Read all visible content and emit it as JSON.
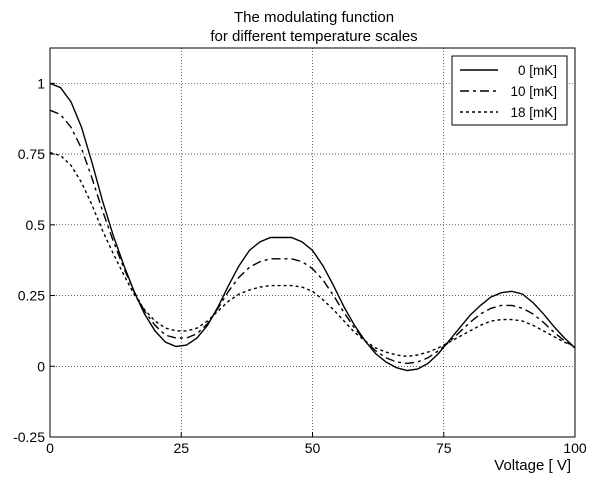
{
  "chart_data": {
    "type": "line",
    "title_line1": "The modulating function",
    "title_line2": "for different temperature scales",
    "xlabel": "Voltage [   V]",
    "ylabel": "",
    "xlim": [
      0,
      100
    ],
    "ylim": [
      -0.25,
      1.125
    ],
    "xticks": [
      0,
      25,
      50,
      75,
      100
    ],
    "xtick_labels": [
      "0",
      "25",
      "50",
      "75",
      "100"
    ],
    "yticks": [
      -0.25,
      0,
      0.25,
      0.5,
      0.75,
      1
    ],
    "ytick_labels": [
      "-0.25",
      "0",
      "0.25",
      "0.5",
      "0.75",
      "1"
    ],
    "grid": true,
    "legend_position": "top-right",
    "series": [
      {
        "name": "0 [mK]",
        "dash": "solid",
        "x": [
          0,
          2,
          4,
          6,
          8,
          10,
          12,
          14,
          16,
          18,
          20,
          22,
          24,
          26,
          28,
          30,
          32,
          34,
          36,
          38,
          40,
          42,
          44,
          46,
          48,
          50,
          52,
          54,
          56,
          58,
          60,
          62,
          64,
          66,
          68,
          70,
          72,
          74,
          76,
          78,
          80,
          82,
          84,
          86,
          88,
          90,
          92,
          94,
          96,
          98,
          100
        ],
        "values": [
          1.0,
          0.985,
          0.935,
          0.845,
          0.72,
          0.585,
          0.465,
          0.36,
          0.265,
          0.185,
          0.125,
          0.085,
          0.07,
          0.075,
          0.1,
          0.145,
          0.21,
          0.285,
          0.355,
          0.41,
          0.44,
          0.455,
          0.455,
          0.455,
          0.44,
          0.41,
          0.355,
          0.285,
          0.21,
          0.145,
          0.09,
          0.045,
          0.015,
          -0.005,
          -0.015,
          -0.01,
          0.01,
          0.045,
          0.09,
          0.135,
          0.18,
          0.215,
          0.245,
          0.26,
          0.265,
          0.255,
          0.225,
          0.185,
          0.14,
          0.1,
          0.065
        ]
      },
      {
        "name": "10 [mK]",
        "dash": "dashed",
        "x": [
          0,
          2,
          4,
          6,
          8,
          10,
          12,
          14,
          16,
          18,
          20,
          22,
          24,
          26,
          28,
          30,
          32,
          34,
          36,
          38,
          40,
          42,
          44,
          46,
          48,
          50,
          52,
          54,
          56,
          58,
          60,
          62,
          64,
          66,
          68,
          70,
          72,
          74,
          76,
          78,
          80,
          82,
          84,
          86,
          88,
          90,
          92,
          94,
          96,
          98,
          100
        ],
        "values": [
          0.905,
          0.89,
          0.845,
          0.77,
          0.665,
          0.55,
          0.445,
          0.35,
          0.265,
          0.195,
          0.145,
          0.11,
          0.1,
          0.1,
          0.115,
          0.15,
          0.205,
          0.265,
          0.315,
          0.35,
          0.37,
          0.38,
          0.38,
          0.38,
          0.37,
          0.345,
          0.305,
          0.25,
          0.19,
          0.135,
          0.09,
          0.055,
          0.03,
          0.015,
          0.01,
          0.015,
          0.03,
          0.055,
          0.085,
          0.12,
          0.155,
          0.185,
          0.205,
          0.215,
          0.215,
          0.205,
          0.185,
          0.155,
          0.12,
          0.09,
          0.065
        ]
      },
      {
        "name": "18 [mK]",
        "dash": "dotted",
        "x": [
          0,
          2,
          4,
          6,
          8,
          10,
          12,
          14,
          16,
          18,
          20,
          22,
          24,
          26,
          28,
          30,
          32,
          34,
          36,
          38,
          40,
          42,
          44,
          46,
          48,
          50,
          52,
          54,
          56,
          58,
          60,
          62,
          64,
          66,
          68,
          70,
          72,
          74,
          76,
          78,
          80,
          82,
          84,
          86,
          88,
          90,
          92,
          94,
          96,
          98,
          100
        ],
        "values": [
          0.755,
          0.745,
          0.71,
          0.65,
          0.57,
          0.48,
          0.4,
          0.325,
          0.255,
          0.2,
          0.16,
          0.135,
          0.125,
          0.125,
          0.135,
          0.16,
          0.195,
          0.23,
          0.255,
          0.27,
          0.28,
          0.285,
          0.285,
          0.285,
          0.28,
          0.265,
          0.235,
          0.2,
          0.16,
          0.12,
          0.09,
          0.065,
          0.05,
          0.04,
          0.035,
          0.04,
          0.05,
          0.065,
          0.085,
          0.105,
          0.125,
          0.145,
          0.16,
          0.165,
          0.165,
          0.16,
          0.145,
          0.125,
          0.105,
          0.085,
          0.07
        ]
      }
    ]
  }
}
